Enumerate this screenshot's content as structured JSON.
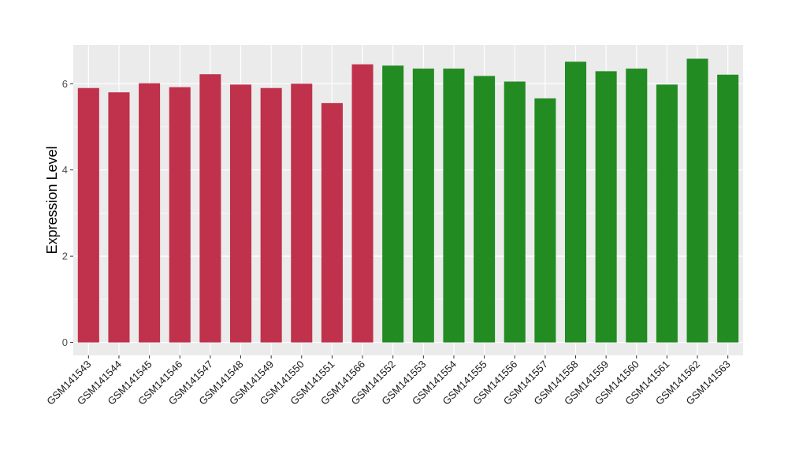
{
  "chart_data": {
    "type": "bar",
    "title": "",
    "xlabel": "",
    "ylabel": "Expression Level",
    "ylim": [
      -0.3,
      6.9
    ],
    "yticks": [
      0,
      2,
      4,
      6
    ],
    "grid": true,
    "categories": [
      "GSM141543",
      "GSM141544",
      "GSM141545",
      "GSM141546",
      "GSM141547",
      "GSM141548",
      "GSM141549",
      "GSM141550",
      "GSM141551",
      "GSM141566",
      "GSM141552",
      "GSM141553",
      "GSM141554",
      "GSM141555",
      "GSM141556",
      "GSM141557",
      "GSM141558",
      "GSM141559",
      "GSM141560",
      "GSM141561",
      "GSM141562",
      "GSM141563"
    ],
    "values": [
      5.9,
      5.8,
      6.01,
      5.92,
      6.22,
      5.98,
      5.9,
      6.0,
      5.55,
      6.45,
      6.42,
      6.35,
      6.35,
      6.18,
      6.05,
      5.66,
      6.51,
      6.29,
      6.35,
      5.98,
      6.58,
      6.21
    ],
    "colors": [
      "#c0314b",
      "#c0314b",
      "#c0314b",
      "#c0314b",
      "#c0314b",
      "#c0314b",
      "#c0314b",
      "#c0314b",
      "#c0314b",
      "#c0314b",
      "#228b22",
      "#228b22",
      "#228b22",
      "#228b22",
      "#228b22",
      "#228b22",
      "#228b22",
      "#228b22",
      "#228b22",
      "#228b22",
      "#228b22",
      "#228b22"
    ],
    "panel_background": "#ebebeb",
    "gridline_color": "#ffffff"
  }
}
